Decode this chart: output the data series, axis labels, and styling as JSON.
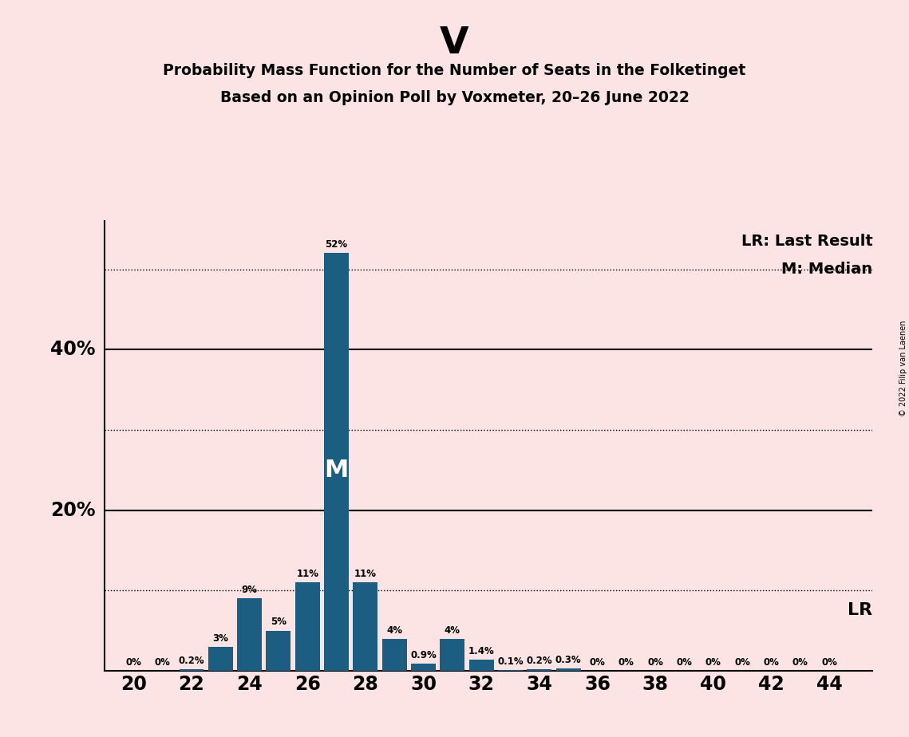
{
  "title_letter": "V",
  "title_line1": "Probability Mass Function for the Number of Seats in the Folketinget",
  "title_line2": "Based on an Opinion Poll by Voxmeter, 20–26 June 2022",
  "copyright": "© 2022 Filip van Laenen",
  "background_color": "#fce4e4",
  "bar_color": "#1b5e82",
  "seats": [
    20,
    21,
    22,
    23,
    24,
    25,
    26,
    27,
    28,
    29,
    30,
    31,
    32,
    33,
    34,
    35,
    36,
    37,
    38,
    39,
    40,
    41,
    42,
    43,
    44
  ],
  "probabilities": [
    0.0,
    0.0,
    0.2,
    3.0,
    9.0,
    5.0,
    11.0,
    52.0,
    11.0,
    4.0,
    0.9,
    4.0,
    1.4,
    0.1,
    0.2,
    0.3,
    0.0,
    0.0,
    0.0,
    0.0,
    0.0,
    0.0,
    0.0,
    0.0,
    0.0
  ],
  "labels": [
    "0%",
    "0%",
    "0.2%",
    "3%",
    "9%",
    "5%",
    "11%",
    "52%",
    "11%",
    "4%",
    "0.9%",
    "4%",
    "1.4%",
    "0.1%",
    "0.2%",
    "0.3%",
    "0%",
    "0%",
    "0%",
    "0%",
    "0%",
    "0%",
    "0%",
    "0%",
    "0%"
  ],
  "xlim": [
    19.0,
    45.5
  ],
  "ylim": [
    0,
    56
  ],
  "xtick_positions": [
    20,
    22,
    24,
    26,
    28,
    30,
    32,
    34,
    36,
    38,
    40,
    42,
    44
  ],
  "solid_hlines": [
    20.0,
    40.0
  ],
  "dotted_hlines": [
    10.0,
    30.0,
    50.0
  ],
  "median_seat": 27,
  "lr_label": "LR",
  "lr_last_result_label": "LR: Last Result",
  "median_legend_label": "M: Median",
  "median_bar_label": "M",
  "label_20pct": "20%",
  "label_40pct": "40%",
  "lr_seat": 44,
  "bar_width": 0.85,
  "label_fontsize": 8.5,
  "tick_fontsize": 17,
  "ylabel_fontsize": 17,
  "legend_fontsize": 14,
  "lr_bottom_fontsize": 16,
  "median_M_fontsize": 22
}
